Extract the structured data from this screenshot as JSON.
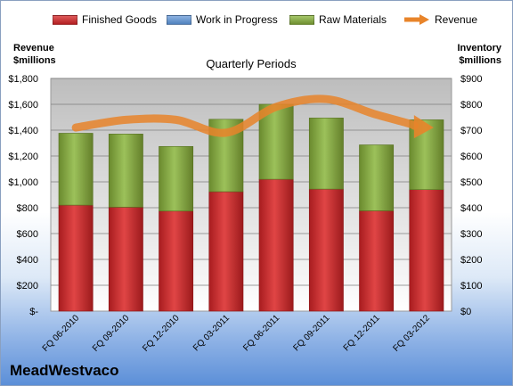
{
  "brand": "MeadWestvaco",
  "chart_data": {
    "type": "bar",
    "subtype": "stacked-bar-with-line",
    "title": "Quarterly Periods",
    "categories": [
      "FQ 06-2010",
      "FQ 09-2010",
      "FQ 12-2010",
      "FQ 03-2011",
      "FQ 06-2011",
      "FQ 09-2011",
      "FQ 12-2011",
      "FQ 03-2012"
    ],
    "y_left": {
      "label_line1": "Revenue",
      "label_line2": "$millions",
      "min": 0,
      "max": 1800,
      "step": 200,
      "ticks": [
        "$-",
        "$200",
        "$400",
        "$600",
        "$800",
        "$1,000",
        "$1,200",
        "$1,400",
        "$1,600",
        "$1,800"
      ]
    },
    "y_right": {
      "label_line1": "Inventory",
      "label_line2": "$millions",
      "min": 0,
      "max": 900,
      "step": 100,
      "ticks": [
        "$0",
        "$100",
        "$200",
        "$300",
        "$400",
        "$500",
        "$600",
        "$700",
        "$800",
        "$900"
      ]
    },
    "grid": true,
    "legend_position": "top",
    "series": [
      {
        "name": "Finished Goods",
        "axis": "right",
        "color": "#c0282a",
        "values": [
          410,
          402,
          387,
          462,
          510,
          472,
          388,
          470
        ]
      },
      {
        "name": "Work in Progress",
        "axis": "right",
        "color": "#4f81bd",
        "values": [
          0,
          0,
          0,
          0,
          0,
          0,
          0,
          0
        ]
      },
      {
        "name": "Raw Materials",
        "axis": "right",
        "color": "#77963b",
        "values": [
          278,
          283,
          250,
          280,
          290,
          275,
          255,
          270
        ]
      },
      {
        "name": "Revenue",
        "axis": "left",
        "type": "line",
        "color": "#e8842a",
        "values": [
          1420,
          1480,
          1480,
          1380,
          1580,
          1640,
          1520,
          1420
        ]
      }
    ]
  }
}
